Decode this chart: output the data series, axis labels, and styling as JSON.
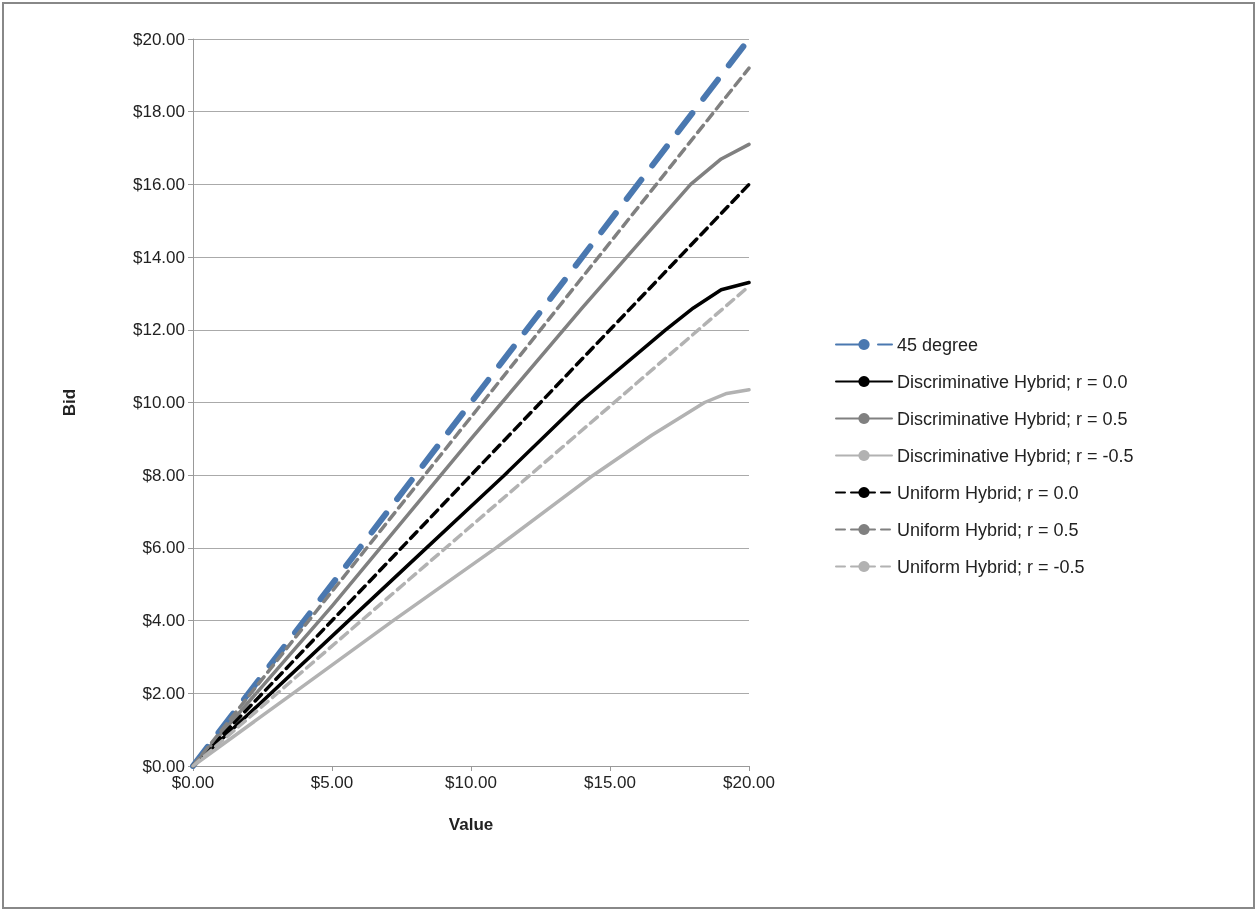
{
  "chart_data": {
    "type": "line",
    "xlabel": "Value",
    "ylabel": "Bid",
    "xlim": [
      0,
      20
    ],
    "ylim": [
      0,
      20
    ],
    "xticks": [
      {
        "value": 0,
        "label": "$0.00"
      },
      {
        "value": 5,
        "label": "$5.00"
      },
      {
        "value": 10,
        "label": "$10.00"
      },
      {
        "value": 15,
        "label": "$15.00"
      },
      {
        "value": 20,
        "label": "$20.00"
      }
    ],
    "yticks": [
      {
        "value": 0,
        "label": "$0.00"
      },
      {
        "value": 2,
        "label": "$2.00"
      },
      {
        "value": 4,
        "label": "$4.00"
      },
      {
        "value": 6,
        "label": "$6.00"
      },
      {
        "value": 8,
        "label": "$8.00"
      },
      {
        "value": 10,
        "label": "$10.00"
      },
      {
        "value": 12,
        "label": "$12.00"
      },
      {
        "value": 14,
        "label": "$14.00"
      },
      {
        "value": 16,
        "label": "$16.00"
      },
      {
        "value": 18,
        "label": "$18.00"
      },
      {
        "value": 20,
        "label": "$20.00"
      }
    ],
    "grid": "y",
    "legend": "right",
    "marker": "none",
    "series": [
      {
        "name": "45 degree",
        "color": "#4a78b0",
        "line_style": "dashed",
        "x": [
          0,
          20
        ],
        "values": [
          0,
          20
        ]
      },
      {
        "name": "Discriminative Hybrid; r = 0.0",
        "color": "#000000",
        "line_style": "solid",
        "x": [
          0,
          5.6,
          8.4,
          11.2,
          13.9,
          17,
          18,
          19,
          20
        ],
        "values": [
          0,
          4,
          6,
          8,
          10,
          12,
          12.6,
          13.1,
          13.3
        ]
      },
      {
        "name": "Discriminative Hybrid; r = 0.5",
        "color": "#808080",
        "line_style": "solid",
        "x": [
          0,
          5,
          10,
          14,
          15.6,
          17.9,
          19,
          20
        ],
        "values": [
          0,
          4.4,
          9,
          12.6,
          14,
          16,
          16.7,
          17.1
        ]
      },
      {
        "name": "Discriminative Hybrid; r = -0.5",
        "color": "#b2b2b2",
        "line_style": "solid",
        "x": [
          0,
          3.6,
          7.2,
          10.9,
          14.4,
          16.5,
          18.4,
          19.2,
          20
        ],
        "values": [
          0,
          2,
          4,
          6,
          8,
          9.1,
          10,
          10.25,
          10.35
        ]
      },
      {
        "name": "Uniform Hybrid; r = 0.0",
        "color": "#000000",
        "line_style": "dashed",
        "x": [
          0,
          20
        ],
        "values": [
          0,
          16
        ]
      },
      {
        "name": "Uniform Hybrid; r = 0.5",
        "color": "#808080",
        "line_style": "dashed",
        "x": [
          0,
          20
        ],
        "values": [
          0,
          19.2
        ]
      },
      {
        "name": "Uniform Hybrid; r = -0.5",
        "color": "#b2b2b2",
        "line_style": "dashed",
        "x": [
          0,
          20
        ],
        "values": [
          0,
          13.2
        ]
      }
    ]
  }
}
